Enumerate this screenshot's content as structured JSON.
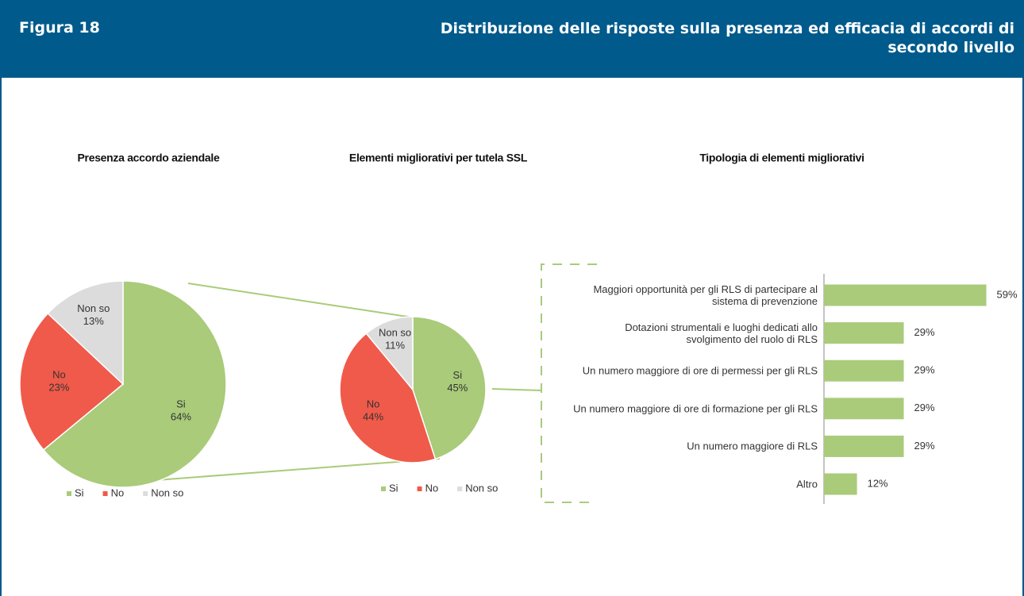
{
  "header": {
    "label": "Figura 18",
    "title": "Distribuzione delle risposte sulla presenza ed efficacia di accordi di secondo livello"
  },
  "chart_data": [
    {
      "type": "pie",
      "title": "Presenza accordo aziendale",
      "categories": [
        "Si",
        "No",
        "Non so"
      ],
      "values": [
        64,
        23,
        13
      ],
      "value_labels": [
        "64%",
        "23%",
        "13%"
      ],
      "colors": [
        "#a9cb7a",
        "#f05a4a",
        "#dcdcdc"
      ],
      "legend": "bottom"
    },
    {
      "type": "pie",
      "title": "Elementi migliorativi per tutela SSL",
      "categories": [
        "Si",
        "No",
        "Non so"
      ],
      "values": [
        45,
        44,
        11
      ],
      "value_labels": [
        "45%",
        "44%",
        "11%"
      ],
      "colors": [
        "#a9cb7a",
        "#f05a4a",
        "#dcdcdc"
      ],
      "legend": "bottom"
    },
    {
      "type": "bar",
      "orientation": "horizontal",
      "title": "Tipologia di elementi migliorativi",
      "categories": [
        "Maggiori opportunità per gli RLS di partecipare al sistema di prevenzione",
        "Dotazioni strumentali e luoghi dedicati allo svolgimento del ruolo di RLS",
        "Un numero maggiore di ore di permessi per gli RLS",
        "Un numero maggiore di ore di formazione per gli RLS",
        "Un numero maggiore di RLS",
        "Altro"
      ],
      "values": [
        59,
        29,
        29,
        29,
        29,
        12
      ],
      "value_labels": [
        "59%",
        "29%",
        "29%",
        "29%",
        "29%",
        "12%"
      ],
      "color": "#a9cb7a",
      "xlim": [
        0,
        60
      ]
    }
  ]
}
